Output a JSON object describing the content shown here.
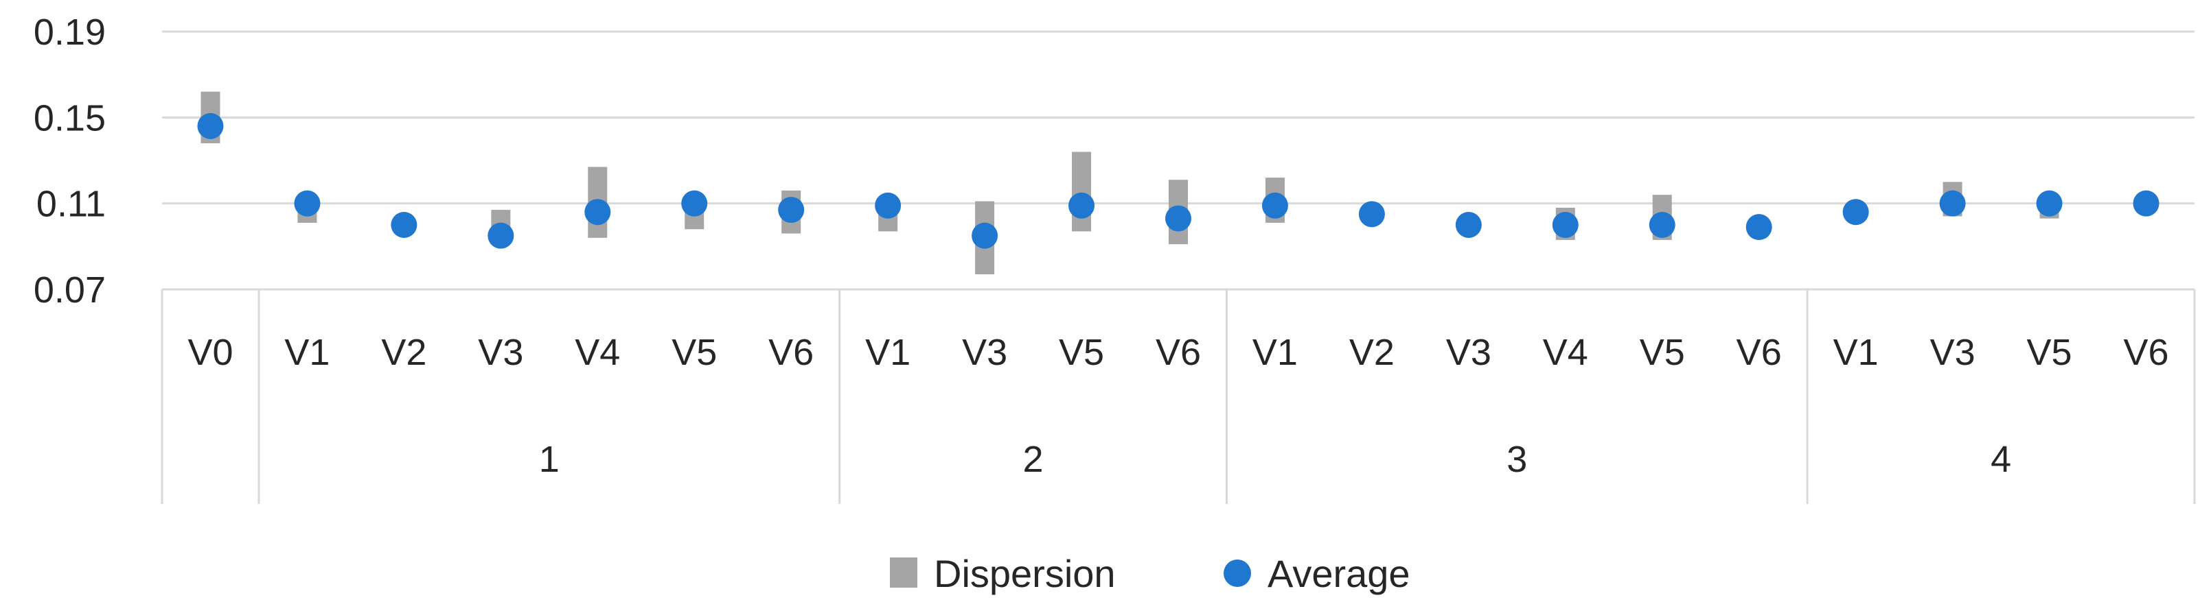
{
  "chart_data": {
    "type": "scatter",
    "title": "",
    "xlabel": "",
    "ylabel": "",
    "ylim": [
      0.07,
      0.19
    ],
    "yticks": [
      "0.19",
      "0.15",
      "0.11",
      "0.07"
    ],
    "grid": true,
    "legend_position": "bottom",
    "groups": [
      {
        "label": "",
        "categories": [
          "V0"
        ]
      },
      {
        "label": "1",
        "categories": [
          "V1",
          "V2",
          "V3",
          "V4",
          "V5",
          "V6"
        ]
      },
      {
        "label": "2",
        "categories": [
          "V1",
          "V3",
          "V5",
          "V6"
        ]
      },
      {
        "label": "3",
        "categories": [
          "V1",
          "V2",
          "V3",
          "V4",
          "V5",
          "V6"
        ]
      },
      {
        "label": "4",
        "categories": [
          "V1",
          "V3",
          "V5",
          "V6"
        ]
      }
    ],
    "series": [
      {
        "name": "Dispersion",
        "kind": "range",
        "color": "#a5a5a5",
        "low": [
          0.138,
          0.101,
          0.101,
          0.093,
          0.094,
          0.098,
          0.096,
          0.097,
          0.077,
          0.097,
          0.091,
          0.101,
          0.103,
          0.098,
          0.093,
          0.093,
          0.096,
          0.105,
          0.104,
          0.103,
          0.108
        ],
        "high": [
          0.162,
          0.113,
          0.102,
          0.107,
          0.127,
          0.113,
          0.116,
          0.112,
          0.111,
          0.134,
          0.121,
          0.122,
          0.108,
          0.103,
          0.108,
          0.114,
          0.103,
          0.108,
          0.12,
          0.114,
          0.112
        ]
      },
      {
        "name": "Average",
        "kind": "marker",
        "color": "#1f77d0",
        "values": [
          0.146,
          0.11,
          0.1,
          0.095,
          0.106,
          0.11,
          0.107,
          0.109,
          0.095,
          0.109,
          0.103,
          0.109,
          0.105,
          0.1,
          0.1,
          0.1,
          0.099,
          0.106,
          0.11,
          0.11,
          0.11
        ]
      }
    ]
  }
}
